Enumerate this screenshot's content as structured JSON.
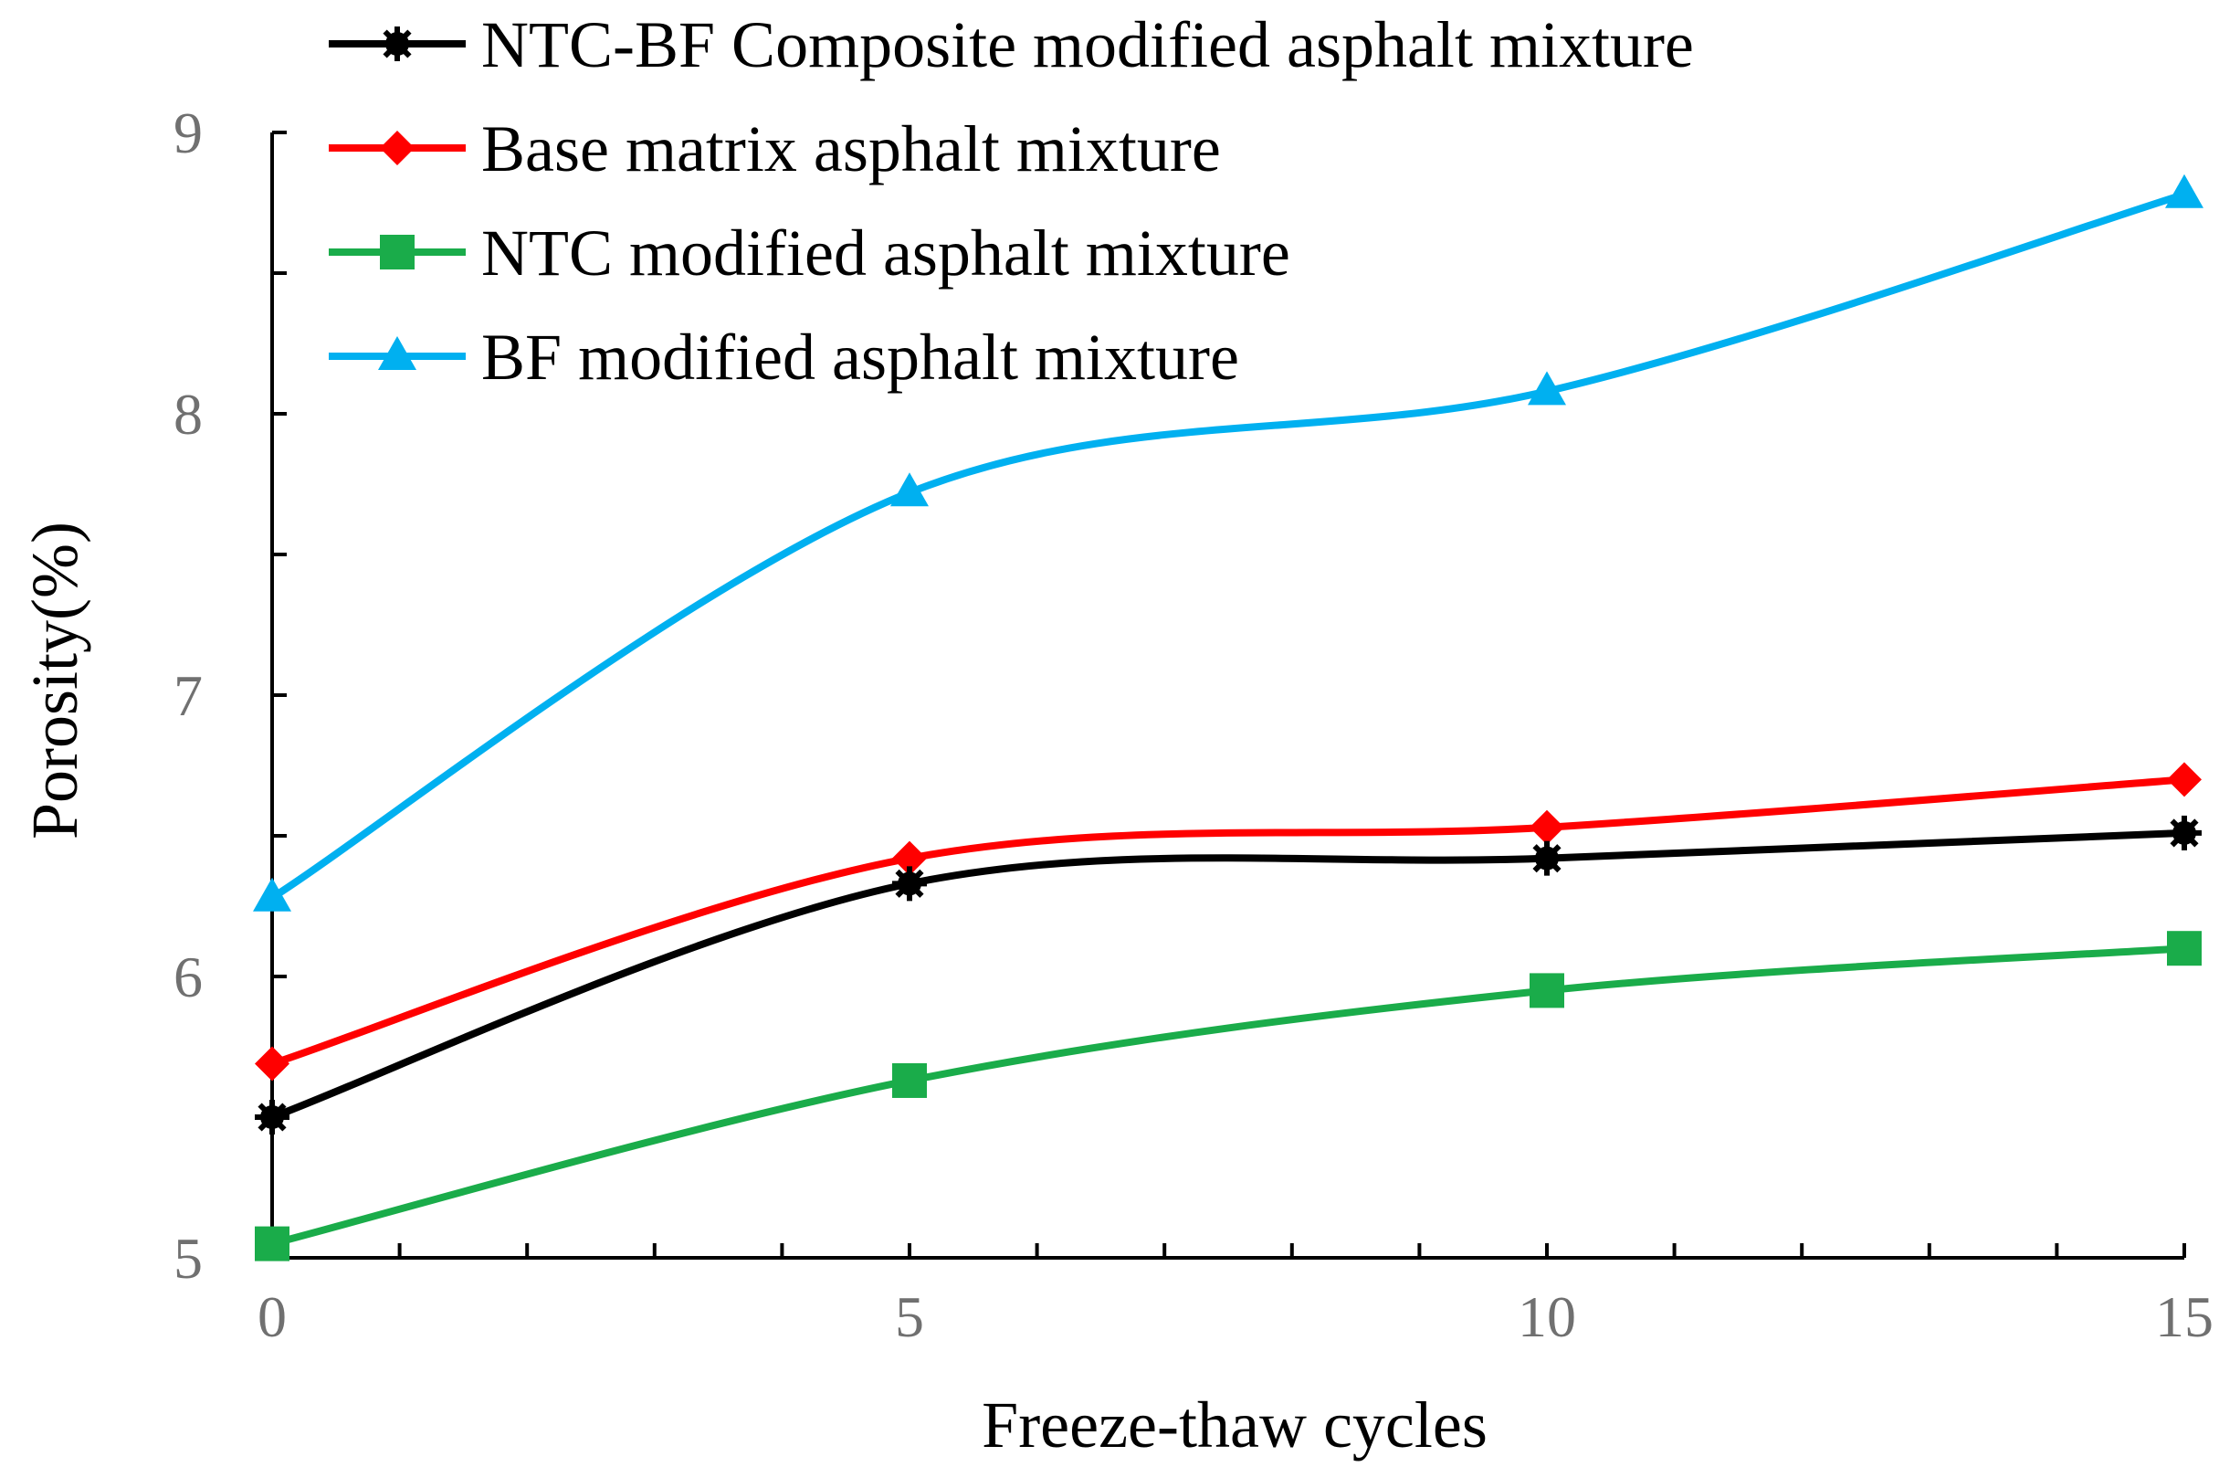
{
  "chart_data": {
    "type": "line",
    "title": "",
    "xlabel": "Freeze-thaw  cycles",
    "ylabel": "Porosity(%)",
    "x": [
      0,
      5,
      10,
      15
    ],
    "xlim": [
      0,
      15
    ],
    "ylim": [
      5,
      9
    ],
    "x_ticks": [
      "0",
      "5",
      "10",
      "15"
    ],
    "y_ticks": [
      "5",
      "6",
      "7",
      "8",
      "9"
    ],
    "grid": false,
    "legend_position": "top-left",
    "series": [
      {
        "name": "NTC-BF Composite modified asphalt mixture",
        "color": "#000000",
        "marker": "circle",
        "values": [
          5.5,
          6.33,
          6.42,
          6.51
        ]
      },
      {
        "name": "Base matrix asphalt mixture",
        "color": "#ff0000",
        "marker": "diamond",
        "values": [
          5.69,
          6.42,
          6.53,
          6.7
        ]
      },
      {
        "name": "NTC modified asphalt mixture",
        "color": "#1aac4a",
        "marker": "square",
        "values": [
          5.05,
          5.63,
          5.95,
          6.1
        ]
      },
      {
        "name": "BF modified asphalt mixture",
        "color": "#00b0f0",
        "marker": "triangle",
        "values": [
          6.28,
          7.72,
          8.08,
          8.78
        ]
      }
    ]
  }
}
